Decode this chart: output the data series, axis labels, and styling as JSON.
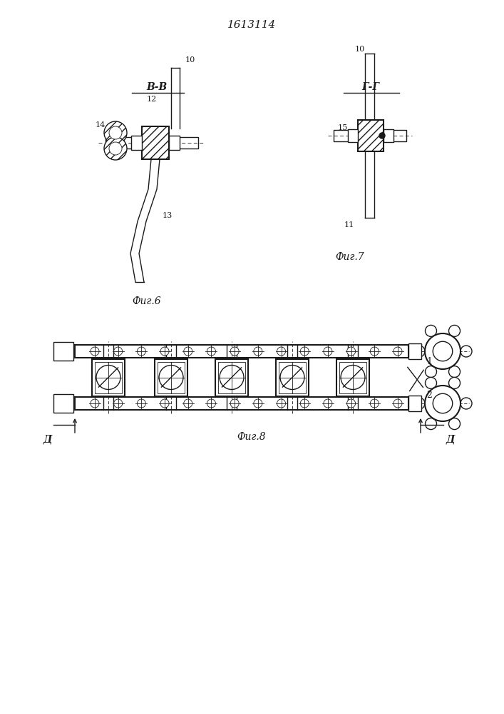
{
  "title": "1613114",
  "fig6_label": "Фиг.6",
  "fig7_label": "Фиг.7",
  "fig8_label": "Фиг.8",
  "section_bb": "В-В",
  "section_gg": "Г-Г",
  "bg_color": "#ffffff",
  "line_color": "#1a1a1a",
  "labels": {
    "10_bb": "10",
    "12_bb": "12",
    "13_bb": "13",
    "14_bb": "14",
    "10_gg": "10",
    "11_gg": "11",
    "15_gg": "15",
    "1_fig8": "1",
    "2_fig8": "2",
    "d_left": "Д",
    "d_right": "Д"
  }
}
